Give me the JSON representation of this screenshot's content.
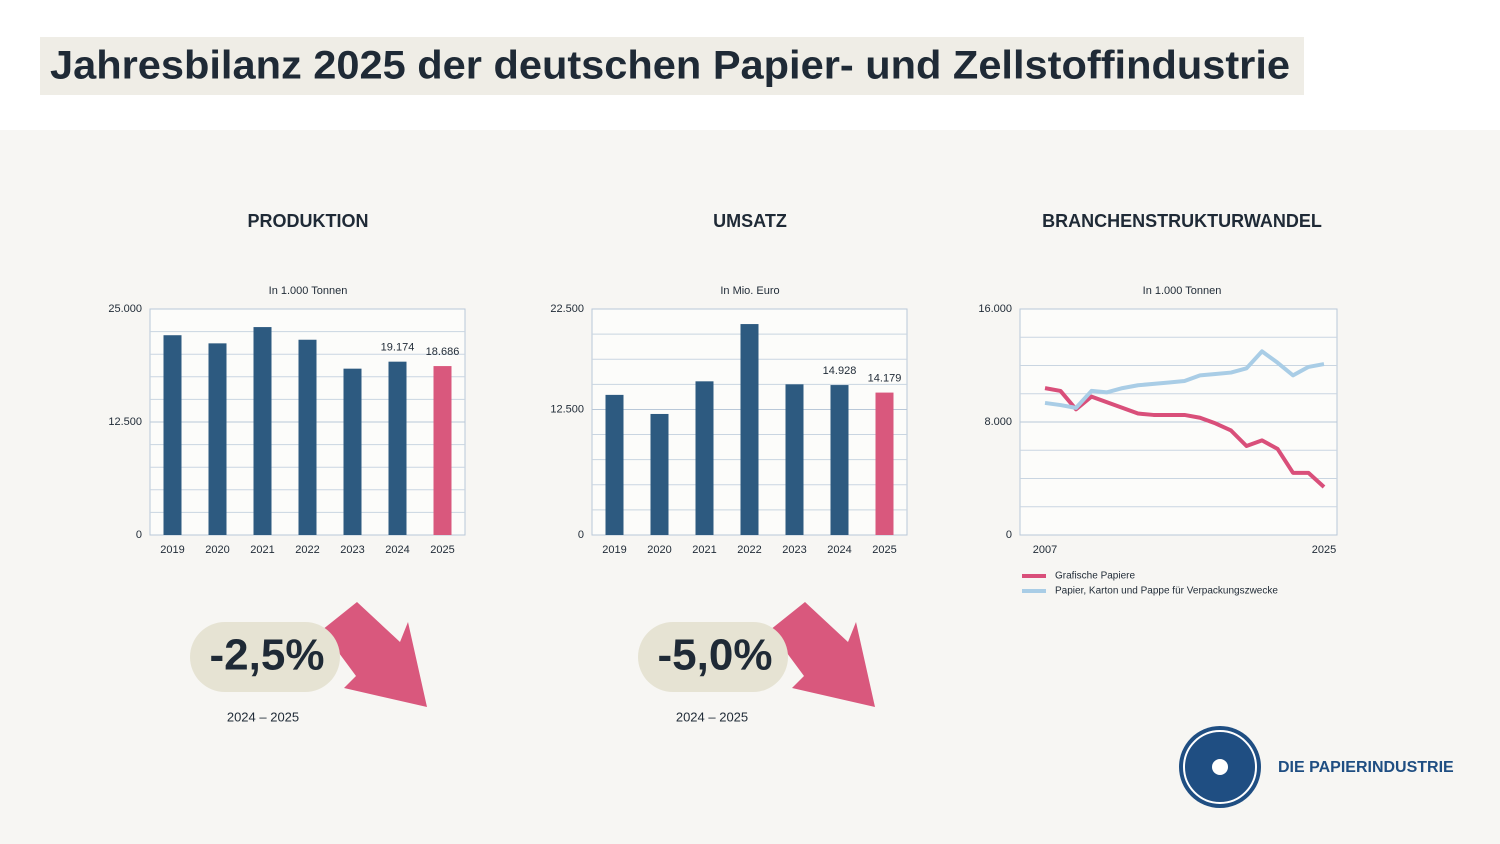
{
  "title": "Jahresbilanz 2025 der deutschen Papier- und Zellstoffindustrie",
  "chart_data": [
    {
      "type": "bar",
      "title": "PRODUKTION",
      "subtitle": "In 1.000 Tonnen",
      "categories": [
        "2019",
        "2020",
        "2021",
        "2022",
        "2023",
        "2024",
        "2025"
      ],
      "values": [
        22100,
        21200,
        23000,
        21600,
        18400,
        19174,
        18686
      ],
      "value_labels": [
        null,
        null,
        null,
        null,
        null,
        "19.174",
        "18.686"
      ],
      "colors": [
        "#2d5a80",
        "#2d5a80",
        "#2d5a80",
        "#2d5a80",
        "#2d5a80",
        "#2d5a80",
        "#d9587d"
      ],
      "ylim": [
        0,
        25000
      ],
      "yticks": [
        0,
        {
          "value": 12500,
          "label": "12.500"
        },
        {
          "value": 25000,
          "label": "25.000"
        }
      ],
      "ygrid": [
        2500,
        5000,
        7500,
        10000,
        15000,
        17500,
        20000,
        22500
      ]
    },
    {
      "type": "bar",
      "title": "UMSATZ",
      "subtitle": "In Mio. Euro",
      "categories": [
        "2019",
        "2020",
        "2021",
        "2022",
        "2023",
        "2024",
        "2025"
      ],
      "values": [
        13950,
        12050,
        15300,
        21000,
        15000,
        14928,
        14179
      ],
      "value_labels": [
        null,
        null,
        null,
        null,
        null,
        "14.928",
        "14.179"
      ],
      "colors": [
        "#2d5a80",
        "#2d5a80",
        "#2d5a80",
        "#2d5a80",
        "#2d5a80",
        "#2d5a80",
        "#d9587d"
      ],
      "ylim": [
        0,
        22500
      ],
      "yticks": [
        0,
        {
          "value": 12500,
          "label": "12.500"
        },
        {
          "value": 22500,
          "label": "22.500"
        }
      ],
      "ygrid": [
        2500,
        5000,
        7500,
        10000,
        15000,
        17500,
        20000
      ]
    },
    {
      "type": "line",
      "title": "BRANCHENSTRUKTURWANDEL",
      "subtitle": "In 1.000 Tonnen",
      "x": [
        2007,
        2008,
        2009,
        2010,
        2011,
        2012,
        2013,
        2014,
        2015,
        2016,
        2017,
        2018,
        2019,
        2020,
        2021,
        2022,
        2023,
        2024,
        2025
      ],
      "series": [
        {
          "name": "Grafische Papiere",
          "color": "#d94f7a",
          "values": [
            10400,
            10200,
            8900,
            9800,
            9400,
            9000,
            8600,
            8500,
            8500,
            8500,
            8300,
            7900,
            7400,
            6300,
            6700,
            6100,
            4400,
            4400,
            3400
          ]
        },
        {
          "name": "Papier, Karton und Pappe für Verpackungszwecke",
          "color": "#a9cde6",
          "values": [
            9350,
            9200,
            9000,
            10200,
            10100,
            10400,
            10600,
            10700,
            10800,
            10900,
            11300,
            11400,
            11500,
            11800,
            13000,
            12200,
            11300,
            11900,
            12100
          ]
        }
      ],
      "xlim": [
        2007,
        2025
      ],
      "xticks": [
        2007,
        2025
      ],
      "ylim": [
        0,
        16000
      ],
      "yticks": [
        0,
        {
          "value": 8000,
          "label": "8.000"
        },
        {
          "value": 16000,
          "label": "16.000"
        }
      ],
      "ygrid": [
        2000,
        4000,
        6000,
        10000,
        12000,
        14000
      ]
    }
  ],
  "changes": [
    {
      "value": "-2,5%",
      "period": "2024 – 2025"
    },
    {
      "value": "-5,0%",
      "period": "2024 – 2025"
    }
  ],
  "logo": "DIE PAPIERINDUSTRIE"
}
